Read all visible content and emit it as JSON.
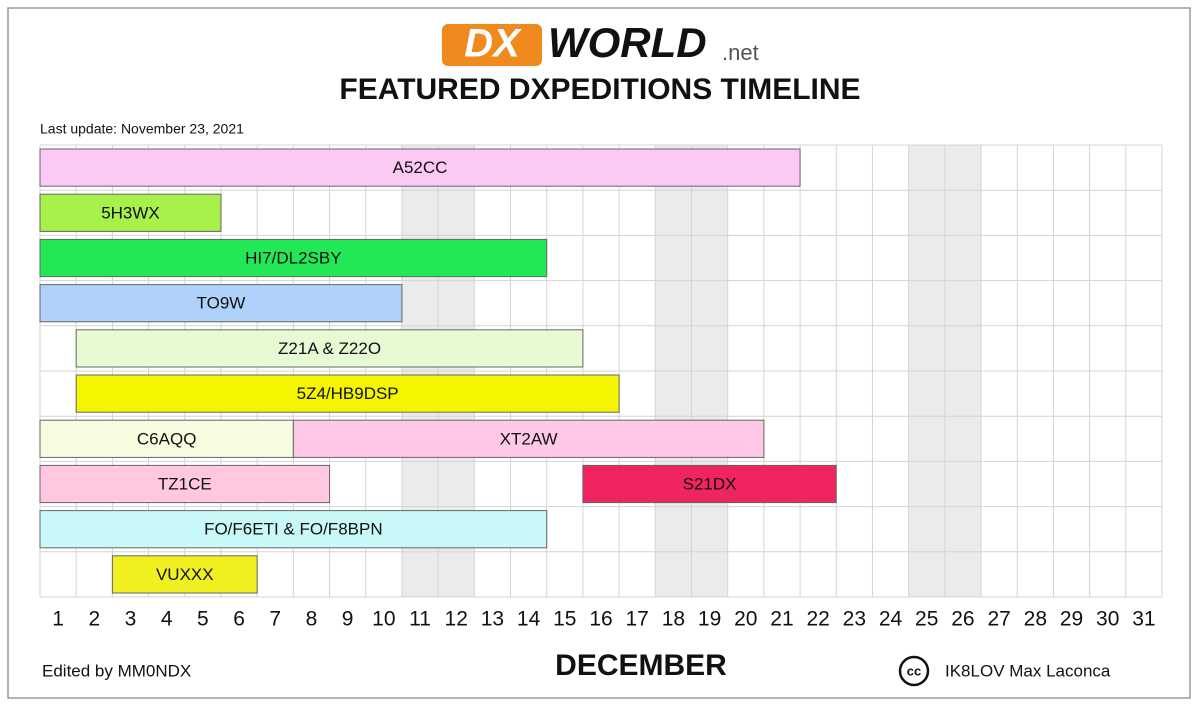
{
  "chart_data": {
    "type": "timeline",
    "logo": {
      "part1": "DX",
      "part2": "WORLD",
      "part3": ".net"
    },
    "title": "FEATURED DXPEDITIONS TIMELINE",
    "subtitle": "Last update: November 23, 2021",
    "x_label": "DECEMBER",
    "editor": "Edited by MM0NDX",
    "license_icon": "cc",
    "credit": "IK8LOV Max Laconca",
    "xticks": [
      1,
      2,
      3,
      4,
      5,
      6,
      7,
      8,
      9,
      10,
      11,
      12,
      13,
      14,
      15,
      16,
      17,
      18,
      19,
      20,
      21,
      22,
      23,
      24,
      25,
      26,
      27,
      28,
      29,
      30,
      31
    ],
    "shaded_days": [
      11,
      12,
      18,
      19,
      25,
      26
    ],
    "shade_color": "#ebebeb",
    "grid": true,
    "rows": [
      [
        {
          "label": "A52CC",
          "start": 1,
          "end": 21,
          "color": "#fcc8f4"
        }
      ],
      [
        {
          "label": "5H3WX",
          "start": 1,
          "end": 5,
          "color": "#a8f04a"
        }
      ],
      [
        {
          "label": "HI7/DL2SBY",
          "start": 1,
          "end": 14,
          "color": "#22e855"
        }
      ],
      [
        {
          "label": "TO9W",
          "start": 1,
          "end": 10,
          "color": "#b0d2fa"
        }
      ],
      [
        {
          "label": "Z21A & Z22O",
          "start": 2,
          "end": 15,
          "color": "#e6fad4"
        }
      ],
      [
        {
          "label": "5Z4/HB9DSP",
          "start": 2,
          "end": 16,
          "color": "#f5f500"
        }
      ],
      [
        {
          "label": "C6AQQ",
          "start": 1,
          "end": 7,
          "color": "#f6fde0"
        },
        {
          "label": "XT2AW",
          "start": 8,
          "end": 20,
          "color": "#ffc8e6"
        }
      ],
      [
        {
          "label": "TZ1CE",
          "start": 1,
          "end": 8,
          "color": "#ffc8e0"
        },
        {
          "label": "S21DX",
          "start": 16,
          "end": 22,
          "color": "#f0245e"
        }
      ],
      [
        {
          "label": "FO/F6ETI & FO/F8BPN",
          "start": 1,
          "end": 14,
          "color": "#c8f8f8"
        }
      ],
      [
        {
          "label": "VUXXX",
          "start": 3,
          "end": 6,
          "color": "#f0f020"
        }
      ]
    ]
  }
}
